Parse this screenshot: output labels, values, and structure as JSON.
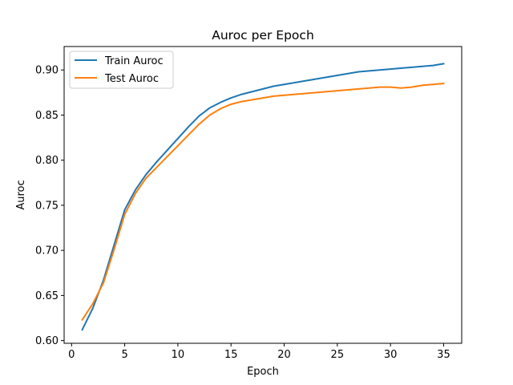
{
  "chart_data": {
    "type": "line",
    "title": "Auroc per Epoch",
    "xlabel": "Epoch",
    "ylabel": "Auroc",
    "xlim": [
      -0.7,
      36.7
    ],
    "ylim": [
      0.597,
      0.926
    ],
    "xticks": [
      0,
      5,
      10,
      15,
      20,
      25,
      30,
      35
    ],
    "yticks": [
      0.6,
      0.65,
      0.7,
      0.75,
      0.8,
      0.85,
      0.9
    ],
    "grid": false,
    "legend_position": "top-left",
    "x": [
      1,
      2,
      3,
      4,
      5,
      6,
      7,
      8,
      9,
      10,
      11,
      12,
      13,
      14,
      15,
      16,
      17,
      18,
      19,
      20,
      21,
      22,
      23,
      24,
      25,
      26,
      27,
      28,
      29,
      30,
      31,
      32,
      33,
      34,
      35
    ],
    "series": [
      {
        "name": "Train Auroc",
        "color": "#1f77b4",
        "values": [
          0.612,
          0.636,
          0.667,
          0.706,
          0.745,
          0.767,
          0.784,
          0.798,
          0.811,
          0.824,
          0.837,
          0.849,
          0.858,
          0.864,
          0.869,
          0.873,
          0.876,
          0.879,
          0.882,
          0.884,
          0.886,
          0.888,
          0.89,
          0.892,
          0.894,
          0.896,
          0.898,
          0.899,
          0.9,
          0.901,
          0.902,
          0.903,
          0.904,
          0.905,
          0.907
        ]
      },
      {
        "name": "Test Auroc",
        "color": "#ff7f0e",
        "values": [
          0.623,
          0.641,
          0.664,
          0.701,
          0.74,
          0.763,
          0.78,
          0.792,
          0.804,
          0.816,
          0.828,
          0.84,
          0.85,
          0.857,
          0.862,
          0.865,
          0.867,
          0.869,
          0.871,
          0.872,
          0.873,
          0.874,
          0.875,
          0.876,
          0.877,
          0.878,
          0.879,
          0.88,
          0.881,
          0.881,
          0.88,
          0.881,
          0.883,
          0.884,
          0.885
        ]
      }
    ]
  }
}
